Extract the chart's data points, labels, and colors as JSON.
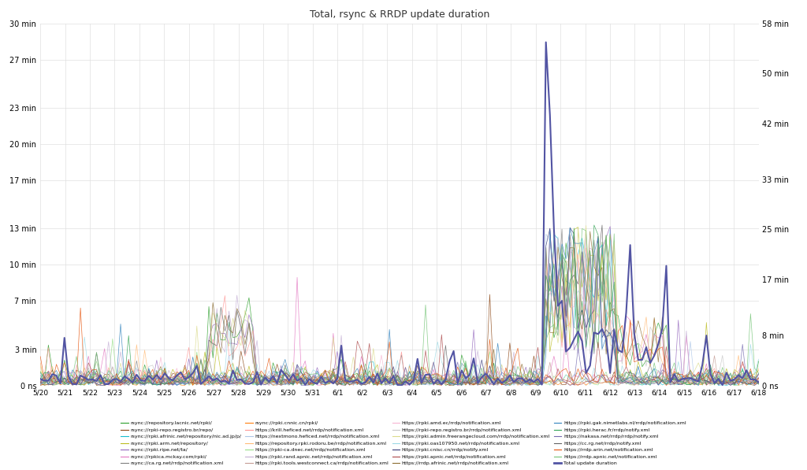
{
  "title": "Total, rsync & RRDP update duration",
  "left_yticks_seconds": [
    0,
    180,
    420,
    600,
    780,
    1020,
    1200,
    1380,
    1620,
    1800
  ],
  "left_yticklabels": [
    "0 ns",
    "3 min",
    "7 min",
    "10 min",
    "13 min",
    "17 min",
    "20 min",
    "23 min",
    "27 min",
    "30 min"
  ],
  "right_yticks_seconds": [
    0,
    480,
    1020,
    1500,
    1980,
    2520,
    3000,
    3480
  ],
  "right_yticklabels": [
    "0 ns",
    "8 min",
    "17 min",
    "25 min",
    "33 min",
    "42 min",
    "50 min",
    "58 min"
  ],
  "left_ylim": [
    0,
    1800
  ],
  "right_ylim": [
    0,
    3480
  ],
  "xtick_labels": [
    "5/20",
    "5/21",
    "5/22",
    "5/23",
    "5/24",
    "5/25",
    "5/26",
    "5/27",
    "5/28",
    "5/29",
    "5/30",
    "5/31",
    "6/1",
    "6/2",
    "6/3",
    "6/4",
    "6/5",
    "6/6",
    "6/7",
    "6/8",
    "6/9",
    "6/10",
    "6/11",
    "6/12",
    "6/13",
    "6/14",
    "6/15",
    "6/16",
    "6/17",
    "6/18"
  ],
  "background_color": "#ffffff",
  "grid_color": "#e0e0e0",
  "series_colors": [
    "#2ca02c",
    "#8B4513",
    "#17becf",
    "#bcbd22",
    "#9467bd",
    "#e377c2",
    "#7f7f7f",
    "#ff7f0e",
    "#ff9896",
    "#aec7e8",
    "#ffbb78",
    "#98df8a",
    "#c5b0d5",
    "#c49c94",
    "#f7b6d2",
    "#c7c7c7",
    "#dbdb8d",
    "#9edae5",
    "#393b79",
    "#ad494a",
    "#8c6d31",
    "#3182bd",
    "#31a354",
    "#756bb1",
    "#636363",
    "#e6550d",
    "#74c476"
  ],
  "legend_entries": [
    {
      "label": "rsync://repository.lacnic.net/rpki/",
      "color": "#2ca02c"
    },
    {
      "label": "rsync://rpki-repo.registro.br/repo/",
      "color": "#8B4513"
    },
    {
      "label": "rsync://rpki.afrinic.net/repository/nic.ad.jp/p/",
      "color": "#17becf"
    },
    {
      "label": "rsync://rpki.arm.net/repository/",
      "color": "#bcbd22"
    },
    {
      "label": "rsync://rpki.ripe.net/ta/",
      "color": "#9467bd"
    },
    {
      "label": "rsync://rpkica.mckay.com/rpki/",
      "color": "#e377c2"
    },
    {
      "label": "rsync://ca.rg.net/rrdp/notification.xml",
      "color": "#7f7f7f"
    },
    {
      "label": "rsync://rpki.cnnic.cn/rpki/",
      "color": "#ff7f0e"
    },
    {
      "label": "https://krill.heficed.net/rrdp/notification.xml",
      "color": "#ff9896"
    },
    {
      "label": "https://nextmono.heficed.net/rrdp/notification.xml",
      "color": "#aec7e8"
    },
    {
      "label": "https://repository.rpki.rodoru.be/rrdp/notification.xml",
      "color": "#ffbb78"
    },
    {
      "label": "https://rpki-ca.dnec.net/rrdp/notification.xml",
      "color": "#98df8a"
    },
    {
      "label": "https://rpki.rand.apnic.net/rrdp/notification.xml",
      "color": "#c5b0d5"
    },
    {
      "label": "https://rpki.tools.westconnect.ca/rrdp/notification.xml",
      "color": "#c49c94"
    },
    {
      "label": "https://rpki.amd.ec/rrdp/notification.xml",
      "color": "#f7b6d2"
    },
    {
      "label": "https://rpki-repo.registro.br/rrdp/notification.xml",
      "color": "#c7c7c7"
    },
    {
      "label": "https://rpki.admin.freerangecloud.com/rrdp/notification.xml",
      "color": "#dbdb8d"
    },
    {
      "label": "https://rpki.oas107950.net/rrdp/notification.xml",
      "color": "#9edae5"
    },
    {
      "label": "https://rpki.cnisc.cn/rrdp/notify.xml",
      "color": "#393b79"
    },
    {
      "label": "https://rpki.apnic.net/rrdp/notification.xml",
      "color": "#ad494a"
    },
    {
      "label": "https://rrdp.afrinic.net/rrdp/notification.xml",
      "color": "#8c6d31"
    },
    {
      "label": "https://rpki.gak.nimetlabs.nl/rrdp/notification.xml",
      "color": "#3182bd"
    },
    {
      "label": "https://rpki.herac.fr/rrdp/notify.xml",
      "color": "#31a354"
    },
    {
      "label": "https://nakasa.net/rrdp/rrdp/notify.xml",
      "color": "#756bb1"
    },
    {
      "label": "https://cc.rg.net/rrdp/notify.xml",
      "color": "#636363"
    },
    {
      "label": "https://rrdp.arin.net/notification.xml",
      "color": "#e6550d"
    },
    {
      "label": "https://rrdp.apnic.net/notification.xml",
      "color": "#74c476"
    },
    {
      "label": "Total update duration",
      "color": "#5254a3",
      "linewidth": 2.0
    }
  ],
  "total_line_color": "#5254a3",
  "n_points": 30,
  "pts_per_day": 6,
  "noise_seed": 42
}
